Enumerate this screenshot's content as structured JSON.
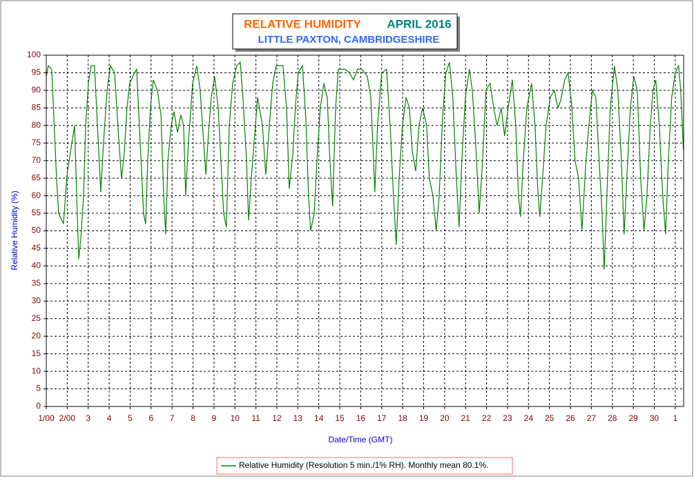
{
  "chart_data": {
    "type": "line",
    "title": "RELATIVE HUMIDITY",
    "title_period": "APRIL 2016",
    "subtitle": "LITTLE PAXTON, CAMBRIDGESHIRE",
    "x_label": "Date/Time (GMT)",
    "y_label": "Relative Humidity (%)",
    "xlim": [
      0,
      30.4
    ],
    "ylim": [
      0,
      100
    ],
    "xticks": [
      {
        "value": 0,
        "label": "1/00"
      },
      {
        "value": 1,
        "label": "2/00"
      },
      {
        "value": 2,
        "label": "3"
      },
      {
        "value": 3,
        "label": "4"
      },
      {
        "value": 4,
        "label": "5"
      },
      {
        "value": 5,
        "label": "6"
      },
      {
        "value": 6,
        "label": "7"
      },
      {
        "value": 7,
        "label": "8"
      },
      {
        "value": 8,
        "label": "9"
      },
      {
        "value": 9,
        "label": "10"
      },
      {
        "value": 10,
        "label": "11"
      },
      {
        "value": 11,
        "label": "12"
      },
      {
        "value": 12,
        "label": "13"
      },
      {
        "value": 13,
        "label": "14"
      },
      {
        "value": 14,
        "label": "15"
      },
      {
        "value": 15,
        "label": "16"
      },
      {
        "value": 16,
        "label": "17"
      },
      {
        "value": 17,
        "label": "18"
      },
      {
        "value": 18,
        "label": "19"
      },
      {
        "value": 19,
        "label": "20"
      },
      {
        "value": 20,
        "label": "21"
      },
      {
        "value": 21,
        "label": "22"
      },
      {
        "value": 22,
        "label": "23"
      },
      {
        "value": 23,
        "label": "24"
      },
      {
        "value": 24,
        "label": "25"
      },
      {
        "value": 25,
        "label": "26"
      },
      {
        "value": 26,
        "label": "27"
      },
      {
        "value": 27,
        "label": "28"
      },
      {
        "value": 28,
        "label": "29"
      },
      {
        "value": 29,
        "label": "30"
      },
      {
        "value": 30,
        "label": "1"
      }
    ],
    "yticks": [
      0,
      5,
      10,
      15,
      20,
      25,
      30,
      35,
      40,
      45,
      50,
      55,
      60,
      65,
      70,
      75,
      80,
      85,
      90,
      95,
      100
    ],
    "grid": true,
    "x": [
      0,
      0.1,
      0.26,
      0.49,
      0.59,
      0.82,
      0.99,
      1.22,
      1.35,
      1.45,
      1.55,
      1.65,
      1.78,
      1.88,
      2.01,
      2.14,
      2.3,
      2.44,
      2.6,
      2.73,
      2.9,
      3.06,
      3.26,
      3.46,
      3.59,
      3.72,
      3.85,
      3.98,
      4.21,
      4.31,
      4.48,
      4.64,
      4.74,
      4.84,
      4.97,
      5.1,
      5.3,
      5.47,
      5.6,
      5.7,
      5.8,
      5.96,
      6.09,
      6.26,
      6.42,
      6.55,
      6.65,
      6.78,
      6.98,
      7.18,
      7.34,
      7.51,
      7.61,
      7.74,
      7.87,
      8.03,
      8.2,
      8.33,
      8.46,
      8.59,
      8.73,
      8.89,
      9.09,
      9.25,
      9.38,
      9.55,
      9.65,
      9.78,
      9.91,
      10.08,
      10.31,
      10.47,
      10.64,
      10.8,
      10.96,
      11.29,
      11.46,
      11.59,
      11.76,
      11.89,
      12.02,
      12.22,
      12.38,
      12.51,
      12.61,
      12.78,
      12.91,
      13.07,
      13.24,
      13.4,
      13.53,
      13.66,
      13.8,
      13.93,
      14.26,
      14.46,
      14.65,
      14.85,
      15.05,
      15.31,
      15.48,
      15.61,
      15.67,
      15.8,
      16.0,
      16.23,
      16.4,
      16.56,
      16.69,
      16.83,
      16.99,
      17.16,
      17.32,
      17.45,
      17.62,
      17.78,
      17.95,
      18.14,
      18.27,
      18.44,
      18.6,
      18.74,
      18.9,
      19.06,
      19.23,
      19.39,
      19.56,
      19.69,
      19.82,
      19.99,
      20.18,
      20.32,
      20.48,
      20.65,
      20.81,
      20.97,
      21.17,
      21.34,
      21.5,
      21.7,
      21.86,
      22.03,
      22.23,
      22.39,
      22.52,
      22.62,
      22.75,
      22.92,
      23.15,
      23.31,
      23.44,
      23.54,
      23.67,
      23.84,
      24.04,
      24.23,
      24.4,
      24.53,
      24.73,
      24.89,
      25.06,
      25.22,
      25.39,
      25.55,
      25.72,
      25.88,
      26.05,
      26.21,
      26.37,
      26.51,
      26.61,
      26.74,
      26.9,
      27.1,
      27.26,
      27.43,
      27.56,
      27.69,
      27.86,
      28.02,
      28.19,
      28.35,
      28.51,
      28.65,
      28.81,
      28.94,
      29.07,
      29.24,
      29.4,
      29.54,
      29.67,
      29.83,
      30.0,
      30.16,
      30.26,
      30.39
    ],
    "series": [
      {
        "name": "Relative Humidity (Resolution 5 min./1% RH). Monthly mean 80.1%.",
        "color": "#008000",
        "values": [
          94,
          97,
          96,
          65,
          55,
          52,
          66,
          75,
          80,
          60,
          42,
          48,
          60,
          80,
          92,
          97,
          97,
          80,
          61,
          75,
          90,
          97,
          95,
          76,
          65,
          72,
          85,
          92,
          95,
          96,
          75,
          55,
          52,
          70,
          85,
          93,
          90,
          83,
          60,
          49,
          70,
          80,
          84,
          78,
          83,
          80,
          60,
          75,
          92,
          97,
          90,
          75,
          66,
          78,
          88,
          94,
          85,
          70,
          55,
          51,
          80,
          92,
          97,
          98,
          88,
          70,
          53,
          65,
          75,
          88,
          80,
          66,
          80,
          92,
          97,
          97,
          85,
          62,
          72,
          86,
          95,
          97,
          82,
          60,
          50,
          55,
          70,
          85,
          92,
          88,
          70,
          57,
          85,
          96,
          96,
          95,
          93,
          96,
          96,
          94,
          88,
          70,
          61,
          80,
          95,
          96,
          80,
          60,
          46,
          65,
          80,
          88,
          85,
          73,
          67,
          80,
          85,
          80,
          65,
          60,
          50,
          60,
          82,
          95,
          98,
          88,
          65,
          51,
          70,
          88,
          96,
          90,
          75,
          55,
          70,
          90,
          92,
          85,
          80,
          85,
          77,
          85,
          93,
          80,
          60,
          54,
          70,
          85,
          92,
          80,
          62,
          54,
          65,
          80,
          88,
          90,
          85,
          87,
          93,
          95,
          86,
          70,
          65,
          50,
          68,
          80,
          90,
          88,
          70,
          55,
          39,
          60,
          85,
          97,
          90,
          70,
          49,
          65,
          85,
          94,
          90,
          65,
          50,
          60,
          80,
          90,
          93,
          80,
          60,
          49,
          70,
          88,
          95,
          97,
          90,
          73
        ]
      }
    ]
  }
}
